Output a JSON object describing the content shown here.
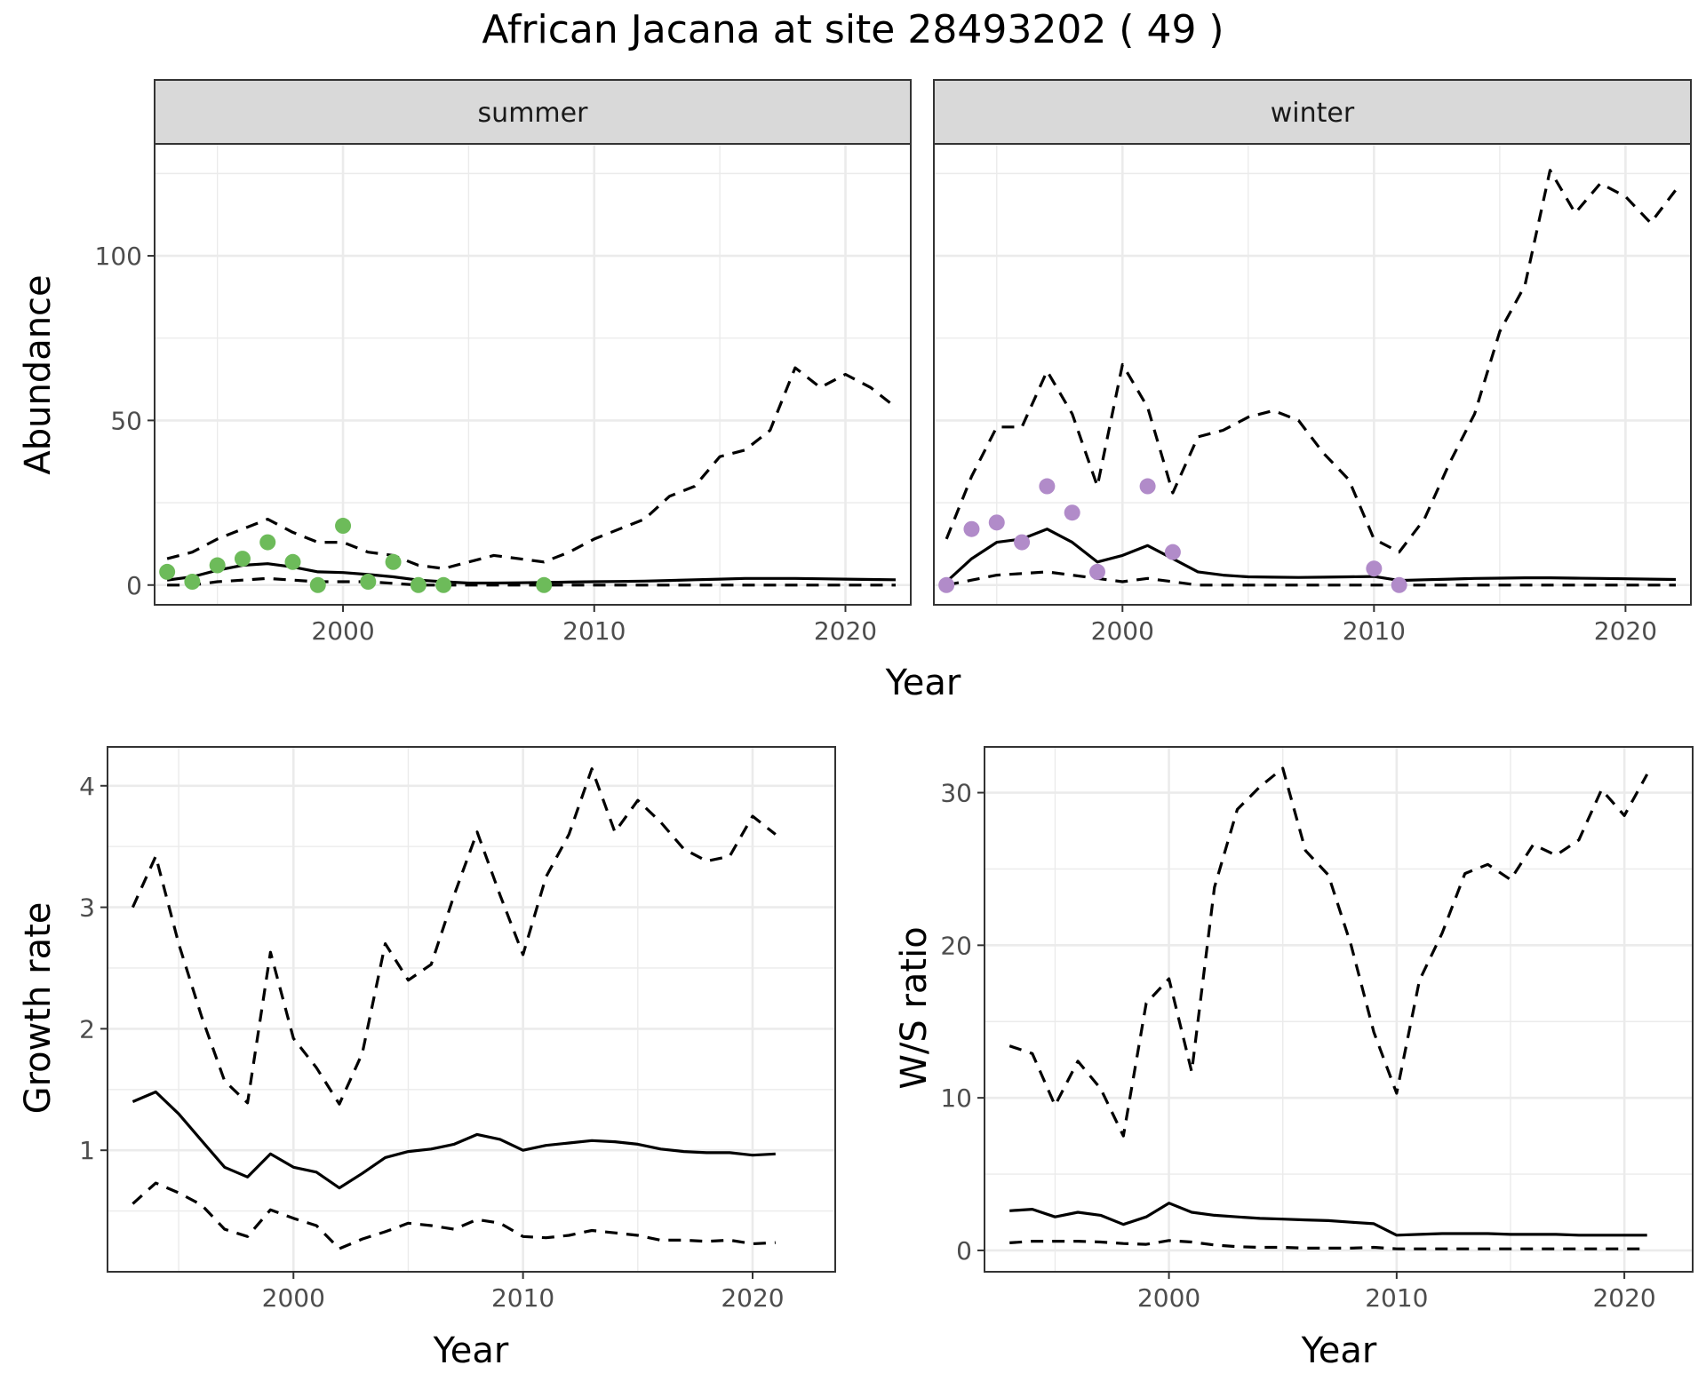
{
  "title": "African Jacana at site 28493202 ( 49 )",
  "colors": {
    "summer_points": "#6dbb5a",
    "winter_points": "#b18bc9",
    "line": "#000000",
    "strip_bg": "#d9d9d9",
    "grid": "#ebebeb"
  },
  "chart_data": [
    {
      "type": "line",
      "panel": "summer",
      "facet_label": "summer",
      "xlabel": "Year",
      "ylabel": "Abundance",
      "xlim": [
        1992.5,
        2022.6
      ],
      "ylim": [
        -6,
        134
      ],
      "xticks": [
        2000,
        2010,
        2020
      ],
      "yticks": [
        0,
        50,
        100
      ],
      "points": {
        "x": [
          1993,
          1994,
          1995,
          1996,
          1997,
          1998,
          1999,
          2000,
          2001,
          2002,
          2003,
          2004,
          2008
        ],
        "y": [
          4,
          1,
          6,
          8,
          13,
          7,
          0,
          18,
          1,
          7,
          0,
          0,
          0
        ]
      },
      "series": [
        {
          "style": "solid",
          "x": [
            1993,
            1994,
            1995,
            1996,
            1997,
            1998,
            1999,
            2000,
            2001,
            2002,
            2003,
            2004,
            2005,
            2006,
            2007,
            2008,
            2009,
            2010,
            2011,
            2012,
            2013,
            2014,
            2015,
            2016,
            2017,
            2018,
            2019,
            2020,
            2021,
            2022
          ],
          "values": [
            1.5,
            2.5,
            4.5,
            6,
            6.5,
            5.5,
            4,
            3.8,
            3.2,
            2.5,
            1.5,
            1,
            0.6,
            0.6,
            0.7,
            0.8,
            0.9,
            1,
            1.1,
            1.2,
            1.4,
            1.6,
            1.8,
            2,
            2,
            2,
            1.9,
            1.8,
            1.7,
            1.6
          ]
        },
        {
          "style": "dashed",
          "x": [
            1993,
            1994,
            1995,
            1996,
            1997,
            1998,
            1999,
            2000,
            2001,
            2002,
            2003,
            2004,
            2005,
            2006,
            2007,
            2008,
            2009,
            2010,
            2011,
            2012,
            2013,
            2014,
            2015,
            2016,
            2017,
            2018,
            2019,
            2020,
            2021,
            2022
          ],
          "values": [
            8,
            10,
            14,
            17,
            20,
            16,
            13,
            13,
            10,
            9,
            6,
            5,
            7,
            9,
            8,
            7,
            10,
            14,
            17,
            20,
            27,
            30,
            39,
            41,
            47,
            66,
            60,
            64,
            60,
            54
          ]
        },
        {
          "style": "dashed",
          "x": [
            1993,
            1994,
            1995,
            1996,
            1997,
            1998,
            1999,
            2000,
            2001,
            2002,
            2003,
            2004,
            2005,
            2006,
            2007,
            2008,
            2009,
            2010,
            2011,
            2012,
            2013,
            2014,
            2015,
            2016,
            2017,
            2018,
            2019,
            2020,
            2021,
            2022
          ],
          "values": [
            0,
            0,
            1,
            1.5,
            2,
            1.5,
            1,
            1,
            1,
            0.5,
            0,
            0,
            0,
            0,
            0,
            0,
            0,
            0,
            0,
            0,
            0,
            0,
            0,
            0,
            0,
            0,
            0,
            0,
            0,
            0
          ]
        }
      ]
    },
    {
      "type": "line",
      "panel": "winter",
      "facet_label": "winter",
      "xlabel": "Year",
      "ylabel": "Abundance",
      "xlim": [
        1992.5,
        2022.6
      ],
      "ylim": [
        -6,
        134
      ],
      "xticks": [
        2000,
        2010,
        2020
      ],
      "yticks": [
        0,
        50,
        100
      ],
      "points": {
        "x": [
          1993,
          1994,
          1995,
          1996,
          1997,
          1998,
          1999,
          2001,
          2002,
          2010,
          2011
        ],
        "y": [
          0,
          17,
          19,
          13,
          30,
          22,
          4,
          30,
          10,
          5,
          0
        ]
      },
      "series": [
        {
          "style": "solid",
          "x": [
            1993,
            1994,
            1995,
            1996,
            1997,
            1998,
            1999,
            2000,
            2001,
            2002,
            2003,
            2004,
            2005,
            2006,
            2007,
            2008,
            2009,
            2010,
            2011,
            2012,
            2013,
            2014,
            2015,
            2016,
            2017,
            2018,
            2019,
            2020,
            2021,
            2022
          ],
          "values": [
            1,
            8,
            13,
            14,
            17,
            13,
            7,
            9,
            12,
            8,
            4,
            3,
            2.5,
            2.4,
            2.3,
            2.4,
            2.5,
            2.6,
            1.4,
            1.6,
            1.8,
            2,
            2.1,
            2.2,
            2.2,
            2.1,
            2,
            1.9,
            1.8,
            1.7
          ]
        },
        {
          "style": "dashed",
          "x": [
            1993,
            1994,
            1995,
            1996,
            1997,
            1998,
            1999,
            2000,
            2001,
            2002,
            2003,
            2004,
            2005,
            2006,
            2007,
            2008,
            2009,
            2010,
            2011,
            2012,
            2013,
            2014,
            2015,
            2016,
            2017,
            2018,
            2019,
            2020,
            2021,
            2022
          ],
          "values": [
            14,
            33,
            48,
            48,
            65,
            52,
            30,
            67,
            54,
            28,
            45,
            47,
            51,
            53,
            50,
            40,
            32,
            14,
            10,
            20,
            37,
            52,
            77,
            91,
            126,
            113,
            122,
            118,
            110,
            120
          ]
        },
        {
          "style": "dashed",
          "x": [
            1993,
            1994,
            1995,
            1996,
            1997,
            1998,
            1999,
            2000,
            2001,
            2002,
            2003,
            2004,
            2005,
            2006,
            2007,
            2008,
            2009,
            2010,
            2011,
            2012,
            2013,
            2014,
            2015,
            2016,
            2017,
            2018,
            2019,
            2020,
            2021,
            2022
          ],
          "values": [
            0,
            1.5,
            3,
            3.5,
            4,
            3,
            2,
            1,
            2,
            1,
            0,
            0,
            0,
            0,
            0,
            0,
            0,
            0,
            0,
            0,
            0,
            0,
            0,
            0,
            0,
            0,
            0,
            0,
            0,
            0
          ]
        }
      ]
    },
    {
      "type": "line",
      "panel": "growth",
      "xlabel": "Year",
      "ylabel": "Growth rate",
      "xlim": [
        1991.9,
        2023.6
      ],
      "ylim": [
        0.0,
        4.32
      ],
      "xticks": [
        2000,
        2010,
        2020
      ],
      "yticks": [
        1,
        2,
        3,
        4
      ],
      "series": [
        {
          "style": "solid",
          "x": [
            1993,
            1994,
            1995,
            1996,
            1997,
            1998,
            1999,
            2000,
            2001,
            2002,
            2003,
            2004,
            2005,
            2006,
            2007,
            2008,
            2009,
            2010,
            2011,
            2012,
            2013,
            2014,
            2015,
            2016,
            2017,
            2018,
            2019,
            2020,
            2021
          ],
          "values": [
            1.4,
            1.48,
            1.3,
            1.08,
            0.86,
            0.78,
            0.97,
            0.86,
            0.82,
            0.69,
            0.81,
            0.94,
            0.99,
            1.01,
            1.05,
            1.13,
            1.09,
            1.0,
            1.04,
            1.06,
            1.08,
            1.07,
            1.05,
            1.01,
            0.99,
            0.98,
            0.98,
            0.96,
            0.97
          ]
        },
        {
          "style": "dashed",
          "x": [
            1993,
            1994,
            1995,
            1996,
            1997,
            1998,
            1999,
            2000,
            2001,
            2002,
            2003,
            2004,
            2005,
            2006,
            2007,
            2008,
            2009,
            2010,
            2011,
            2012,
            2013,
            2014,
            2015,
            2016,
            2017,
            2018,
            2019,
            2020,
            2021
          ],
          "values": [
            3.0,
            3.42,
            2.7,
            2.1,
            1.57,
            1.39,
            2.63,
            1.92,
            1.68,
            1.38,
            1.8,
            2.7,
            2.4,
            2.53,
            3.1,
            3.62,
            3.1,
            2.61,
            3.25,
            3.6,
            4.14,
            3.62,
            3.88,
            3.7,
            3.48,
            3.38,
            3.42,
            3.75,
            3.6
          ]
        },
        {
          "style": "dashed",
          "x": [
            1993,
            1994,
            1995,
            1996,
            1997,
            1998,
            1999,
            2000,
            2001,
            2002,
            2003,
            2004,
            2005,
            2006,
            2007,
            2008,
            2009,
            2010,
            2011,
            2012,
            2013,
            2014,
            2015,
            2016,
            2017,
            2018,
            2019,
            2020,
            2021
          ],
          "values": [
            0.56,
            0.73,
            0.65,
            0.55,
            0.35,
            0.29,
            0.51,
            0.44,
            0.38,
            0.19,
            0.27,
            0.33,
            0.4,
            0.38,
            0.35,
            0.43,
            0.4,
            0.29,
            0.28,
            0.3,
            0.34,
            0.32,
            0.3,
            0.26,
            0.26,
            0.25,
            0.26,
            0.23,
            0.24
          ]
        }
      ]
    },
    {
      "type": "line",
      "panel": "ratio",
      "xlabel": "Year",
      "ylabel": "W/S ratio",
      "xlim": [
        1991.9,
        2023.0
      ],
      "ylim": [
        -1.4,
        33.0
      ],
      "xticks": [
        2000,
        2010,
        2020
      ],
      "yticks": [
        0,
        10,
        20,
        30
      ],
      "series": [
        {
          "style": "solid",
          "x": [
            1993,
            1994,
            1995,
            1996,
            1997,
            1998,
            1999,
            2000,
            2001,
            2002,
            2003,
            2004,
            2005,
            2006,
            2007,
            2008,
            2009,
            2010,
            2011,
            2012,
            2013,
            2014,
            2015,
            2016,
            2017,
            2018,
            2019,
            2020,
            2021
          ],
          "values": [
            2.6,
            2.7,
            2.2,
            2.5,
            2.3,
            1.7,
            2.2,
            3.1,
            2.5,
            2.3,
            2.2,
            2.1,
            2.05,
            2.0,
            1.95,
            1.85,
            1.75,
            1.0,
            1.05,
            1.1,
            1.1,
            1.1,
            1.05,
            1.05,
            1.05,
            1.0,
            1.0,
            1.0,
            1.0
          ]
        },
        {
          "style": "dashed",
          "x": [
            1993,
            1994,
            1995,
            1996,
            1997,
            1998,
            1999,
            2000,
            2001,
            2002,
            2003,
            2004,
            2005,
            2006,
            2007,
            2008,
            2009,
            2010,
            2011,
            2012,
            2013,
            2014,
            2015,
            2016,
            2017,
            2018,
            2019,
            2020,
            2021
          ],
          "values": [
            13.4,
            12.9,
            9.5,
            12.4,
            10.6,
            7.5,
            16.2,
            17.8,
            11.7,
            23.8,
            28.9,
            30.4,
            31.6,
            26.2,
            24.6,
            20.0,
            14.3,
            10.3,
            17.7,
            20.8,
            24.7,
            25.3,
            24.3,
            26.6,
            25.9,
            26.9,
            30.2,
            28.5,
            31.2
          ]
        },
        {
          "style": "dashed",
          "x": [
            1993,
            1994,
            1995,
            1996,
            1997,
            1998,
            1999,
            2000,
            2001,
            2002,
            2003,
            2004,
            2005,
            2006,
            2007,
            2008,
            2009,
            2010,
            2011,
            2012,
            2013,
            2014,
            2015,
            2016,
            2017,
            2018,
            2019,
            2020,
            2021
          ],
          "values": [
            0.5,
            0.6,
            0.6,
            0.6,
            0.55,
            0.45,
            0.4,
            0.65,
            0.55,
            0.35,
            0.25,
            0.2,
            0.2,
            0.15,
            0.15,
            0.15,
            0.2,
            0.1,
            0.1,
            0.1,
            0.1,
            0.1,
            0.1,
            0.1,
            0.1,
            0.1,
            0.1,
            0.1,
            0.1
          ]
        }
      ]
    }
  ]
}
